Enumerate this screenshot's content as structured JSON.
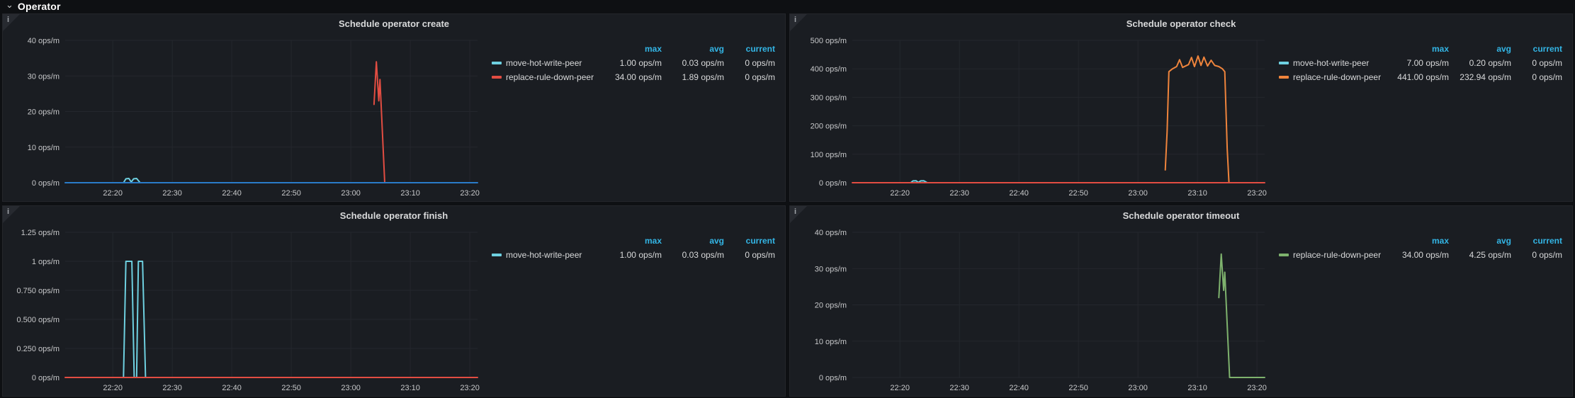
{
  "row": {
    "title": "Operator"
  },
  "icons": {
    "chevron_down": "⌄",
    "info": "i"
  },
  "legend_headers": [
    "max",
    "avg",
    "current"
  ],
  "colors": {
    "page_bg": "#0e1013",
    "panel_bg": "#1a1d22",
    "grid": "#24272d",
    "axis_text": "#c7c8ca",
    "title_text": "#d8d9da",
    "legend_header": "#33b5e5",
    "cyan": "#6ed0e0",
    "red": "#e24d42",
    "orange": "#ef843c",
    "green": "#7eb26d",
    "blue": "#2a7bc9"
  },
  "chart_data": [
    {
      "type": "line",
      "title": "Schedule operator create",
      "unit": "ops/m",
      "ylim": [
        0,
        40
      ],
      "y_tick_step": 10,
      "y_tick_labels": [
        "40 ops/m",
        "30 ops/m",
        "20 ops/m",
        "10 ops/m",
        "0 ops/m"
      ],
      "x_ticks": [
        "22:20",
        "22:30",
        "22:40",
        "22:50",
        "23:00",
        "23:10",
        "23:20"
      ],
      "x_range_min": [
        12,
        81.3
      ],
      "legend": [
        {
          "name": "move-hot-write-peer",
          "color": "#6ed0e0",
          "max": "1.00 ops/m",
          "avg": "0.03 ops/m",
          "current": "0 ops/m"
        },
        {
          "name": "replace-rule-down-peer",
          "color": "#e24d42",
          "max": "34.00 ops/m",
          "avg": "1.89 ops/m",
          "current": "0 ops/m"
        }
      ],
      "series": [
        {
          "name": "move-hot-write-peer",
          "color": "#6ed0e0",
          "points": [
            [
              21.8,
              0
            ],
            [
              22.2,
              1.1
            ],
            [
              22.7,
              1.2
            ],
            [
              23.1,
              0.2
            ],
            [
              23.5,
              1.1
            ],
            [
              24.0,
              1.2
            ],
            [
              24.6,
              0
            ]
          ]
        },
        {
          "name": "replace-rule-down-peer",
          "color": "#e24d42",
          "points": [
            [
              63.9,
              22
            ],
            [
              64.3,
              34
            ],
            [
              64.7,
              23
            ],
            [
              64.9,
              29
            ],
            [
              65.7,
              0
            ]
          ]
        },
        {
          "name": "",
          "color": "#2a7bc9",
          "points": [
            [
              12,
              0
            ],
            [
              81.3,
              0
            ]
          ]
        }
      ]
    },
    {
      "type": "line",
      "title": "Schedule operator check",
      "unit": "ops/m",
      "ylim": [
        0,
        500
      ],
      "y_tick_step": 100,
      "y_tick_labels": [
        "500 ops/m",
        "400 ops/m",
        "300 ops/m",
        "200 ops/m",
        "100 ops/m",
        "0 ops/m"
      ],
      "x_ticks": [
        "22:20",
        "22:30",
        "22:40",
        "22:50",
        "23:00",
        "23:10",
        "23:20"
      ],
      "x_range_min": [
        12,
        81.3
      ],
      "legend": [
        {
          "name": "move-hot-write-peer",
          "color": "#6ed0e0",
          "max": "7.00 ops/m",
          "avg": "0.20 ops/m",
          "current": "0 ops/m"
        },
        {
          "name": "replace-rule-down-peer",
          "color": "#ef843c",
          "max": "441.00 ops/m",
          "avg": "232.94 ops/m",
          "current": "0 ops/m"
        }
      ],
      "series": [
        {
          "name": "move-hot-write-peer",
          "color": "#6ed0e0",
          "points": [
            [
              21.8,
              0
            ],
            [
              22.2,
              6.5
            ],
            [
              22.7,
              7
            ],
            [
              23.1,
              1
            ],
            [
              23.5,
              6.5
            ],
            [
              24.0,
              7
            ],
            [
              24.6,
              0
            ]
          ]
        },
        {
          "name": "replace-rule-down-peer",
          "color": "#ef843c",
          "points": [
            [
              64.6,
              45
            ],
            [
              64.9,
              180
            ],
            [
              65.2,
              390
            ],
            [
              65.8,
              400
            ],
            [
              66.5,
              408
            ],
            [
              67.0,
              432
            ],
            [
              67.5,
              405
            ],
            [
              68.0,
              410
            ],
            [
              68.5,
              415
            ],
            [
              69.0,
              440
            ],
            [
              69.5,
              408
            ],
            [
              70.1,
              445
            ],
            [
              70.6,
              412
            ],
            [
              71.1,
              441
            ],
            [
              71.7,
              410
            ],
            [
              72.3,
              430
            ],
            [
              72.9,
              412
            ],
            [
              73.6,
              408
            ],
            [
              74.2,
              400
            ],
            [
              74.6,
              390
            ],
            [
              75.0,
              120
            ],
            [
              75.3,
              0
            ],
            [
              75.8,
              0
            ]
          ]
        },
        {
          "name": "",
          "color": "#e24d42",
          "points": [
            [
              12,
              0
            ],
            [
              81.3,
              0
            ]
          ]
        }
      ]
    },
    {
      "type": "line",
      "title": "Schedule operator finish",
      "unit": "ops/m",
      "ylim": [
        0,
        1.25
      ],
      "y_tick_step": 0.25,
      "y_tick_labels": [
        "1.25 ops/m",
        "1 ops/m",
        "0.750 ops/m",
        "0.500 ops/m",
        "0.250 ops/m",
        "0 ops/m"
      ],
      "x_ticks": [
        "22:20",
        "22:30",
        "22:40",
        "22:50",
        "23:00",
        "23:10",
        "23:20"
      ],
      "x_range_min": [
        12,
        81.3
      ],
      "legend": [
        {
          "name": "move-hot-write-peer",
          "color": "#6ed0e0",
          "max": "1.00 ops/m",
          "avg": "0.03 ops/m",
          "current": "0 ops/m"
        }
      ],
      "series": [
        {
          "name": "move-hot-write-peer",
          "color": "#6ed0e0",
          "points": [
            [
              21.8,
              0
            ],
            [
              22.2,
              1
            ],
            [
              23.2,
              1
            ],
            [
              23.6,
              0
            ],
            [
              24.0,
              0
            ],
            [
              24.3,
              1
            ],
            [
              25.0,
              1
            ],
            [
              25.5,
              0
            ]
          ]
        },
        {
          "name": "",
          "color": "#e24d42",
          "points": [
            [
              12,
              0
            ],
            [
              81.3,
              0
            ]
          ]
        }
      ]
    },
    {
      "type": "line",
      "title": "Schedule operator timeout",
      "unit": "ops/m",
      "ylim": [
        0,
        40
      ],
      "y_tick_step": 10,
      "y_tick_labels": [
        "40 ops/m",
        "30 ops/m",
        "20 ops/m",
        "10 ops/m",
        "0 ops/m"
      ],
      "x_ticks": [
        "22:20",
        "22:30",
        "22:40",
        "22:50",
        "23:00",
        "23:10",
        "23:20"
      ],
      "x_range_min": [
        12,
        81.3
      ],
      "legend": [
        {
          "name": "replace-rule-down-peer",
          "color": "#7eb26d",
          "max": "34.00 ops/m",
          "avg": "4.25 ops/m",
          "current": "0 ops/m"
        }
      ],
      "series": [
        {
          "name": "replace-rule-down-peer",
          "color": "#7eb26d",
          "points": [
            [
              73.6,
              22
            ],
            [
              74.0,
              34
            ],
            [
              74.4,
              24
            ],
            [
              74.6,
              29
            ],
            [
              75.4,
              0
            ],
            [
              81.3,
              0
            ]
          ]
        }
      ]
    }
  ]
}
